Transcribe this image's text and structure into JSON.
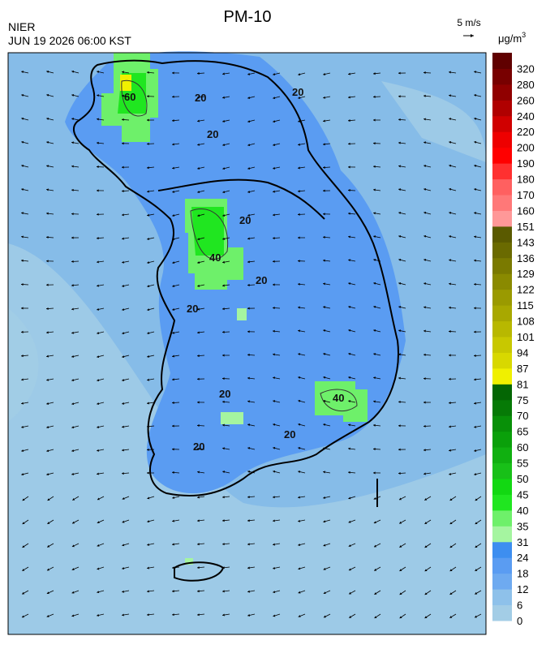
{
  "header": {
    "title": "PM-10",
    "agency": "NIER",
    "timestamp": "JUN 19 2026 06:00 KST",
    "wind_scale": "5 m/s",
    "unit": "μg/m",
    "unit_exponent": "3"
  },
  "map": {
    "contour_labels": [
      "20",
      "60",
      "40",
      "20",
      "20",
      "40",
      "20",
      "20",
      "20",
      "20",
      "20",
      "20"
    ]
  },
  "legend": {
    "labels": [
      0,
      6,
      12,
      18,
      24,
      31,
      35,
      40,
      45,
      50,
      55,
      60,
      65,
      70,
      75,
      81,
      87,
      94,
      101,
      108,
      115,
      122,
      129,
      136,
      143,
      151,
      160,
      170,
      180,
      190,
      200,
      220,
      240,
      260,
      280,
      320
    ],
    "colors": [
      "#a3cde6",
      "#8ec1ea",
      "#6eaaf0",
      "#5a9cf2",
      "#3d8ef0",
      "#a5f5a0",
      "#6ef06a",
      "#20e620",
      "#12d812",
      "#18c018",
      "#10b010",
      "#0aa00a",
      "#089008",
      "#067a06",
      "#046604",
      "#f0f000",
      "#d8d800",
      "#c8c800",
      "#b8b800",
      "#a8a800",
      "#9a9a00",
      "#8a8a00",
      "#7a7a00",
      "#6a6a00",
      "#5a5a00",
      "#ff9898",
      "#ff7878",
      "#ff6060",
      "#ff3030",
      "#ff0000",
      "#ee0000",
      "#d00000",
      "#b00000",
      "#900000",
      "#780000",
      "#600000"
    ]
  }
}
